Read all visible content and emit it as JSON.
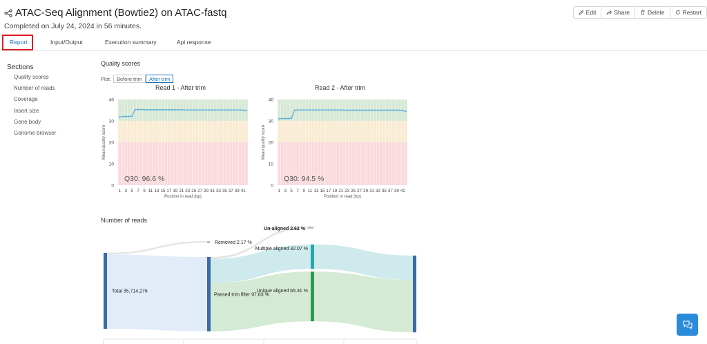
{
  "header": {
    "title": "ATAC-Seq Alignment (Bowtie2) on ATAC-fastq",
    "subtitle": "Completed on July 24, 2024 in 56 minutes."
  },
  "actions": {
    "edit": "Edit",
    "share": "Share",
    "delete": "Delete",
    "restart": "Restart"
  },
  "tabs": [
    "Report",
    "Input/Output",
    "Execution summary",
    "Api response"
  ],
  "sidebar": {
    "title": "Sections",
    "items": [
      "Quality scores",
      "Number of reads",
      "Coverage",
      "Insert size",
      "Gene body",
      "Genome browser"
    ]
  },
  "quality_scores": {
    "heading": "Quality scores",
    "plot_label": "Plot:",
    "plot_options": [
      "Before trim",
      "After trim"
    ],
    "selected_option": "After trim"
  },
  "number_of_reads": {
    "heading": "Number of reads"
  },
  "colors": {
    "accent": "#1a73b8",
    "highlight": "#e01b24",
    "good_zone": "#d7e9d6",
    "warn_zone": "#faecd4",
    "bad_zone": "#fadadd",
    "quality_line": "#5bafd8"
  },
  "chart_data": [
    {
      "type": "line",
      "title": "Read 1 - After trim",
      "xlabel": "Position in read (bp)",
      "ylabel": "Mean quality score",
      "ylim": [
        0,
        40
      ],
      "yticks": [
        0,
        10,
        20,
        30,
        40
      ],
      "xlim": [
        1,
        42
      ],
      "xticks": [
        1,
        3,
        5,
        7,
        9,
        11,
        13,
        15,
        17,
        19,
        21,
        23,
        25,
        27,
        29,
        31,
        33,
        35,
        37,
        39,
        41
      ],
      "annotation": "Q30: 96.6 %",
      "series": [
        {
          "x": [
            1,
            2,
            3,
            4,
            5,
            6,
            7,
            8,
            9,
            10,
            11,
            12,
            13,
            14,
            15,
            16,
            17,
            18,
            19,
            20,
            21,
            22,
            23,
            24,
            25,
            26,
            27,
            28,
            29,
            30,
            31,
            32,
            33,
            34,
            35,
            36,
            37,
            38,
            39,
            40,
            41,
            42
          ],
          "values": [
            31.8,
            32.0,
            32.1,
            32.1,
            32.2,
            35.3,
            35.3,
            35.3,
            35.2,
            35.2,
            35.2,
            35.2,
            35.2,
            35.2,
            35.2,
            35.2,
            35.2,
            35.2,
            35.2,
            35.2,
            35.2,
            35.1,
            35.1,
            35.1,
            35.1,
            35.1,
            35.1,
            35.1,
            35.1,
            35.1,
            35.1,
            35.1,
            35.1,
            35.1,
            35.1,
            35.1,
            35.1,
            35.1,
            35.1,
            35.1,
            35.0,
            34.8
          ]
        }
      ]
    },
    {
      "type": "line",
      "title": "Read 2 - After trim",
      "xlabel": "Position in read (bp)",
      "ylabel": "Mean quality score",
      "ylim": [
        0,
        40
      ],
      "yticks": [
        0,
        10,
        20,
        30,
        40
      ],
      "xlim": [
        1,
        42
      ],
      "xticks": [
        1,
        3,
        5,
        7,
        9,
        11,
        13,
        15,
        17,
        19,
        21,
        23,
        25,
        27,
        29,
        31,
        33,
        35,
        37,
        39,
        41
      ],
      "annotation": "Q30: 94.5 %",
      "series": [
        {
          "x": [
            1,
            2,
            3,
            4,
            5,
            6,
            7,
            8,
            9,
            10,
            11,
            12,
            13,
            14,
            15,
            16,
            17,
            18,
            19,
            20,
            21,
            22,
            23,
            24,
            25,
            26,
            27,
            28,
            29,
            30,
            31,
            32,
            33,
            34,
            35,
            36,
            37,
            38,
            39,
            40,
            41,
            42
          ],
          "values": [
            31.0,
            31.1,
            31.1,
            31.1,
            31.2,
            35.0,
            35.1,
            35.1,
            35.1,
            35.1,
            35.1,
            35.1,
            35.1,
            35.1,
            35.1,
            35.1,
            35.1,
            35.1,
            35.1,
            35.1,
            35.1,
            35.0,
            35.0,
            35.0,
            35.0,
            35.0,
            35.0,
            35.0,
            35.0,
            35.0,
            35.0,
            35.0,
            35.0,
            35.0,
            35.0,
            35.0,
            35.0,
            35.0,
            35.0,
            35.0,
            34.8,
            34.4
          ]
        }
      ]
    },
    {
      "type": "sankey",
      "nodes": [
        {
          "label": "Total 35,714,276"
        },
        {
          "label": "Removed 2.17 %"
        },
        {
          "label": "Passed trim filter 97.83 %"
        },
        {
          "label": "Un-aligned 2.62 %"
        },
        {
          "label": "Multiple aligned 32.07 %"
        },
        {
          "label": "Unique aligned 65.31 %"
        }
      ],
      "links": [
        {
          "source": 0,
          "target": 1,
          "value": 2.17
        },
        {
          "source": 0,
          "target": 2,
          "value": 97.83
        },
        {
          "source": 2,
          "target": 3,
          "value": 2.62
        },
        {
          "source": 2,
          "target": 4,
          "value": 32.07
        },
        {
          "source": 2,
          "target": 5,
          "value": 65.31
        }
      ]
    }
  ]
}
